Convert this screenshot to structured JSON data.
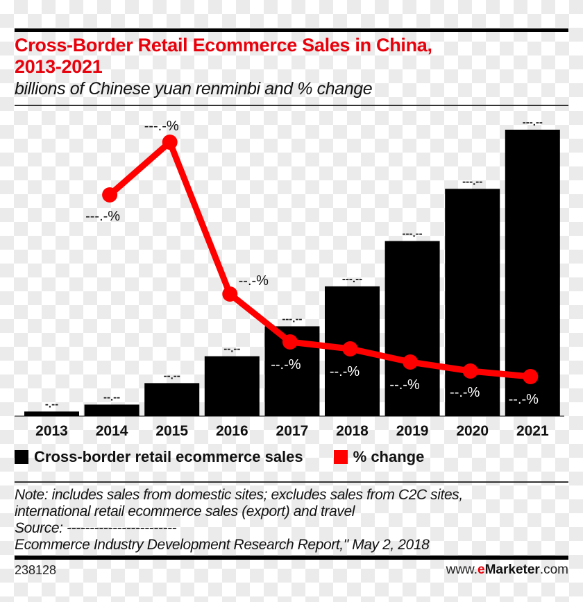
{
  "header": {
    "title_line1": "Cross-Border Retail Ecommerce Sales in China,",
    "title_line2": "2013-2021",
    "subtitle": "billions of Chinese yuan renminbi and % change"
  },
  "colors": {
    "title": "#e8000b",
    "bar": "#000000",
    "line": "#ff0000",
    "bar_label": "#111111",
    "line_label_outside": "#111111",
    "line_label_inside": "#ffffff"
  },
  "legend": {
    "items": [
      {
        "label": "Cross-border retail ecommerce sales",
        "color": "#000000"
      },
      {
        "label": "% change",
        "color": "#ff0000"
      }
    ]
  },
  "notes": {
    "line1": "Note: includes sales from domestic sites; excludes sales from C2C sites,",
    "line2": "international retail ecommerce sales (export) and travel",
    "line3": "Source: ------------------------",
    "line4": "Ecommerce Industry Development Research Report,\" May 2, 2018"
  },
  "footer": {
    "chart_id": "238128",
    "brand_prefix": "www.",
    "brand_e": "e",
    "brand_name": "Marketer",
    "brand_suffix": ".com"
  },
  "chart_data": {
    "type": "bar",
    "title": "Cross-Border Retail Ecommerce Sales in China, 2013-2021",
    "subtitle": "billions of Chinese yuan renminbi and % change",
    "xlabel": "",
    "ylabel": "",
    "categories": [
      "2013",
      "2014",
      "2015",
      "2016",
      "2017",
      "2018",
      "2019",
      "2020",
      "2021"
    ],
    "series": [
      {
        "name": "Cross-border retail ecommerce sales",
        "type": "bar",
        "color": "#000000",
        "values": [
          6,
          15,
          43,
          78,
          117,
          169,
          228,
          296,
          373
        ],
        "labels": [
          "-.--",
          "--.--",
          "--.--",
          "--.--",
          "---.--",
          "---.--",
          "---.--",
          "---.--",
          "---.--"
        ]
      },
      {
        "name": "% change",
        "type": "line",
        "color": "#ff0000",
        "values": [
          null,
          180.0,
          195.0,
          80.0,
          50.0,
          45.0,
          37.0,
          30.0,
          26.0
        ],
        "labels": [
          null,
          "---.-%",
          "---.-%",
          "--.-%",
          "--.-%",
          "--.-%",
          "--.-%",
          "--.-%",
          "--.-%"
        ]
      }
    ],
    "grid": false,
    "legend_position": "bottom-left",
    "note": "Values are obscured in the source image; numeric values estimated from bar heights and point positions."
  }
}
